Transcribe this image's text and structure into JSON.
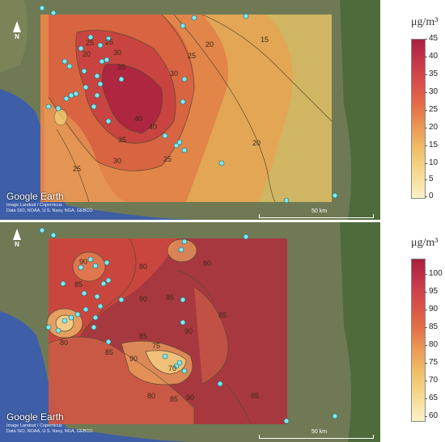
{
  "panels": [
    {
      "id": "top",
      "legend_unit": "μg/m³",
      "legend_ticks": [
        "45",
        "40",
        "35",
        "30",
        "25",
        "20",
        "15",
        "10",
        "5",
        "0"
      ],
      "contour_labels": [
        "15",
        "20",
        "20",
        "25",
        "25",
        "25",
        "30",
        "30",
        "30",
        "35",
        "35",
        "40",
        "40",
        "25",
        "25",
        "20"
      ],
      "colors": {
        "low": "#fdf6d8",
        "mid": "#e8804a",
        "high": "#b21f3a"
      }
    },
    {
      "id": "bottom",
      "legend_unit": "μg/m³",
      "legend_ticks": [
        "100",
        "95",
        "90",
        "85",
        "80",
        "75",
        "70",
        "65",
        "60"
      ],
      "contour_labels": [
        "90",
        "85",
        "80",
        "90",
        "85",
        "80",
        "85",
        "90",
        "85",
        "80",
        "85",
        "90",
        "70",
        "75",
        "80",
        "85",
        "85",
        "90"
      ],
      "colors": {
        "low": "#fdf6d8",
        "mid": "#e8804a",
        "high": "#b21f3a"
      }
    }
  ],
  "map_branding": "Google Earth",
  "map_credits": [
    "Image Landsat / Copernicus",
    "Data SIO, NOAA, U.S. Navy, NGA, GEBCO"
  ],
  "scale_label": "50 km",
  "north_label": "N"
}
